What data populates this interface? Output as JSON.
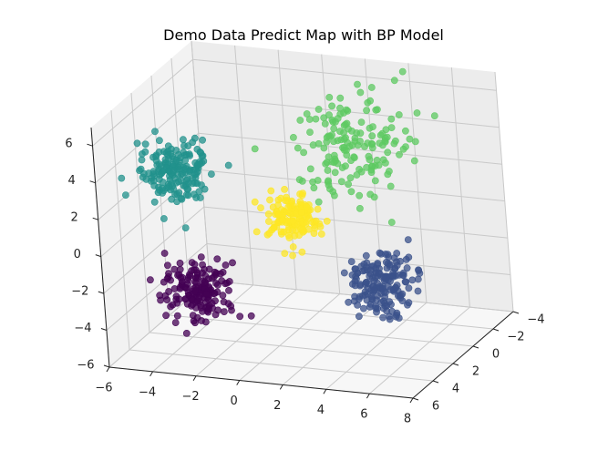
{
  "chart_data": {
    "type": "scatter",
    "projection": "3d",
    "title": "Demo Data Predict Map with BP Model",
    "xlabel": "",
    "ylabel": "",
    "zlabel": "",
    "grid": true,
    "x_ticks": [
      "−6",
      "−4",
      "−2",
      "0",
      "2",
      "4",
      "6",
      "8"
    ],
    "y_ticks": [
      "−4",
      "−2",
      "0",
      "2",
      "4",
      "6"
    ],
    "z_ticks": [
      "−6",
      "−4",
      "−2",
      "0",
      "2",
      "4",
      "6"
    ],
    "xlim": [
      -6,
      8
    ],
    "ylim": [
      -4,
      6
    ],
    "zlim": [
      -6,
      7
    ],
    "point_alpha": 0.75,
    "clusters": [
      {
        "center": [
          -3.5,
          3.5,
          3.8
        ],
        "spread": [
          0.8,
          0.8,
          0.8
        ],
        "count": 170,
        "color": "#21918c"
      },
      {
        "center": [
          2.5,
          -1.5,
          3.5
        ],
        "spread": [
          1.3,
          1.3,
          1.3
        ],
        "count": 160,
        "color": "#5ec962"
      },
      {
        "center": [
          0.0,
          0.0,
          0.0
        ],
        "spread": [
          0.55,
          0.55,
          0.55
        ],
        "count": 140,
        "color": "#fde725"
      },
      {
        "center": [
          -3.5,
          2.0,
          -3.5
        ],
        "spread": [
          0.75,
          0.75,
          0.75
        ],
        "count": 170,
        "color": "#440154"
      },
      {
        "center": [
          3.5,
          -1.0,
          -3.5
        ],
        "spread": [
          0.75,
          0.75,
          0.75
        ],
        "count": 170,
        "color": "#3b528b"
      }
    ]
  }
}
